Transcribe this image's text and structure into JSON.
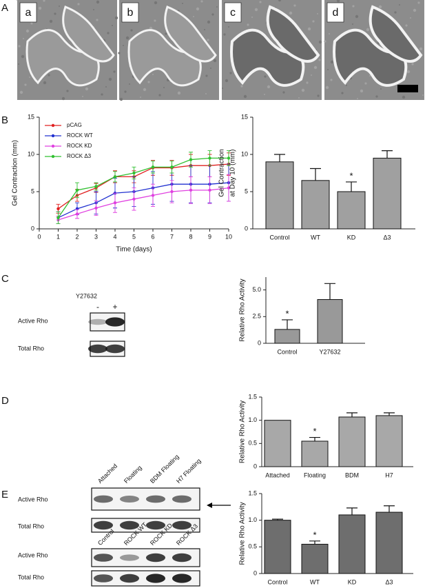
{
  "figure": {
    "panel_labels": [
      "A",
      "B",
      "C",
      "D",
      "E"
    ]
  },
  "micrographs": {
    "labels": [
      "a",
      "b",
      "c",
      "d"
    ]
  },
  "blots": [
    {
      "header": "Y27632",
      "lanes": [
        "-",
        "+"
      ],
      "rows": [
        "Active Rho",
        "Total Rho"
      ]
    },
    {
      "lanes": [
        "Attached",
        "Floating",
        "BDM Floating",
        "H7 Floating"
      ],
      "rows": [
        "Active Rho",
        "Total Rho"
      ]
    },
    {
      "lanes": [
        "Control",
        "ROCK WT",
        "ROCK KD",
        "ROCK Δ3"
      ],
      "rows": [
        "Active Rho",
        "Total Rho"
      ]
    }
  ],
  "chart_data": [
    {
      "type": "line",
      "xlabel": "Time (days)",
      "ylabel": "Gel Contraction (mm)",
      "x": [
        1,
        2,
        3,
        4,
        5,
        6,
        7,
        8,
        9,
        10
      ],
      "xlim": [
        0,
        10
      ],
      "xticks": [
        0,
        1,
        2,
        3,
        4,
        5,
        6,
        7,
        8,
        9,
        10
      ],
      "ylim": [
        0,
        15
      ],
      "yticks": [
        0,
        5,
        10,
        15
      ],
      "legend": "upper left",
      "series": [
        {
          "name": "pCAG",
          "color": "#e02020",
          "values": [
            2.7,
            4.5,
            5.5,
            7.0,
            7.0,
            8.2,
            8.2,
            8.5,
            8.5,
            8.7
          ],
          "errors": [
            0.6,
            0.8,
            0.6,
            0.8,
            0.8,
            1.0,
            1.0,
            1.5,
            1.5,
            1.5
          ]
        },
        {
          "name": "ROCK WT",
          "color": "#2030d0",
          "values": [
            1.5,
            2.7,
            3.5,
            4.8,
            5.0,
            5.5,
            6.0,
            6.0,
            6.0,
            6.2
          ],
          "errors": [
            0.8,
            0.8,
            1.5,
            2.0,
            2.0,
            2.2,
            2.3,
            2.5,
            2.5,
            2.5
          ]
        },
        {
          "name": "ROCK KD",
          "color": "#e040e0",
          "values": [
            1.2,
            2.0,
            2.8,
            3.5,
            4.0,
            4.5,
            5.0,
            5.2,
            5.2,
            5.5
          ],
          "errors": [
            0.5,
            0.6,
            1.0,
            1.3,
            1.5,
            1.5,
            1.5,
            1.8,
            1.8,
            1.8
          ]
        },
        {
          "name": "ROCK Δ3",
          "color": "#30c030",
          "values": [
            1.5,
            5.2,
            5.7,
            7.0,
            7.5,
            8.3,
            8.3,
            9.3,
            9.5,
            9.5
          ],
          "errors": [
            0.8,
            1.0,
            0.5,
            0.7,
            0.8,
            0.8,
            0.8,
            1.0,
            1.0,
            1.0
          ]
        }
      ]
    },
    {
      "type": "bar",
      "ylabel": [
        "Gel Contraction",
        "at Day 10 (mm)"
      ],
      "color": "#a0a0a0",
      "categories": [
        "Control",
        "WT",
        "KD",
        "Δ3"
      ],
      "values": [
        9.0,
        6.5,
        5.0,
        9.5
      ],
      "errors": [
        1.0,
        1.6,
        1.3,
        1.0
      ],
      "ylim": [
        0,
        15
      ],
      "yticks": [
        0,
        5,
        10,
        15
      ],
      "annotations": [
        {
          "text": "*",
          "x": "KD"
        }
      ]
    },
    {
      "type": "bar",
      "ylabel": [
        "Relative Rho Activity"
      ],
      "color": "#999999",
      "categories": [
        "Control",
        "Y27632"
      ],
      "values": [
        1.3,
        4.1
      ],
      "errors": [
        0.9,
        1.5
      ],
      "ylim": [
        0,
        6.2
      ],
      "yticks": [
        0,
        2.5,
        {
          "value": 5,
          "label": "5.0"
        }
      ],
      "annotations": [
        {
          "text": "*",
          "x": "Control"
        }
      ]
    },
    {
      "type": "bar",
      "ylabel": [
        "Relative Rho Activity"
      ],
      "color": "#a8a8a8",
      "categories": [
        "Attached",
        "Floating",
        "BDM",
        "H7"
      ],
      "values": [
        1.0,
        0.55,
        1.07,
        1.1
      ],
      "errors": [
        null,
        0.08,
        0.09,
        0.06
      ],
      "ylim": [
        0,
        1.5
      ],
      "yticks": [
        0,
        0.5,
        {
          "value": 1,
          "label": "1.0"
        },
        1.5
      ],
      "annotations": [
        {
          "text": "*",
          "x": "Floating"
        }
      ]
    },
    {
      "type": "bar",
      "ylabel": [
        "Relative Rho Activity"
      ],
      "color": "#6e6e6e",
      "categories": [
        "Control",
        "WT",
        "KD",
        "Δ3"
      ],
      "values": [
        1.0,
        0.55,
        1.1,
        1.15
      ],
      "errors": [
        0.02,
        0.06,
        0.13,
        0.12
      ],
      "ylim": [
        0,
        1.5
      ],
      "yticks": [
        0,
        0.5,
        {
          "value": 1,
          "label": "1.0"
        },
        1.5
      ],
      "annotations": [
        {
          "text": "*",
          "x": "WT"
        }
      ]
    }
  ]
}
